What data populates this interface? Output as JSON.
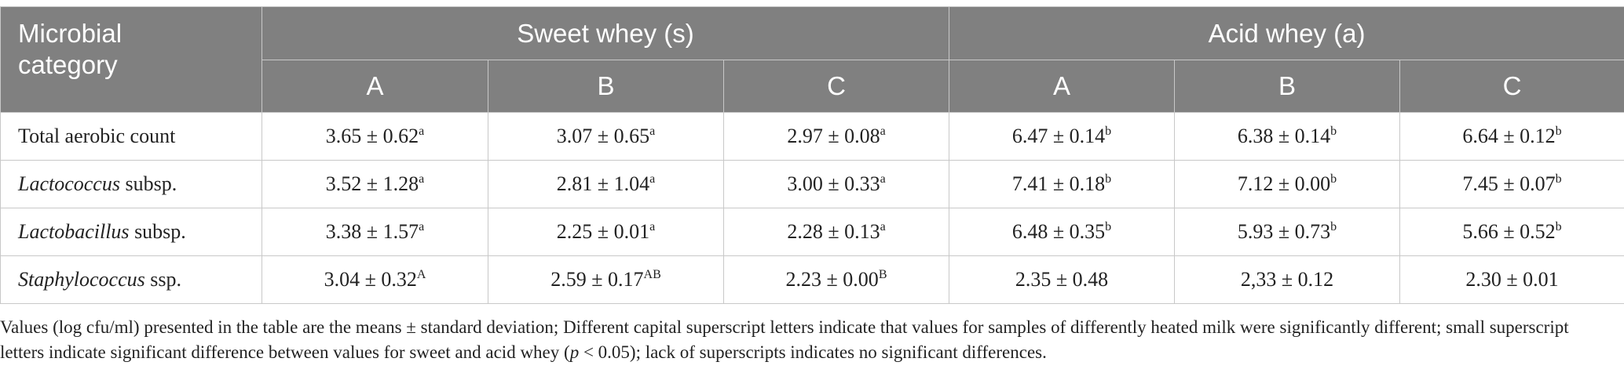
{
  "header": {
    "category_line1": "Microbial",
    "category_line2": "category",
    "groups": [
      "Sweet whey (s)",
      "Acid whey (a)"
    ],
    "subcolumns": [
      "A",
      "B",
      "C",
      "A",
      "B",
      "C"
    ]
  },
  "rows": [
    {
      "label_italic": "",
      "label_rest": "Total aerobic count",
      "cells": [
        {
          "v": "3.65 ± 0.62",
          "s": "a"
        },
        {
          "v": "3.07 ± 0.65",
          "s": "a"
        },
        {
          "v": "2.97 ± 0.08",
          "s": "a"
        },
        {
          "v": "6.47 ± 0.14",
          "s": "b"
        },
        {
          "v": "6.38 ± 0.14",
          "s": "b"
        },
        {
          "v": "6.64 ± 0.12",
          "s": "b"
        }
      ]
    },
    {
      "label_italic": "Lactococcus",
      "label_rest": " subsp.",
      "cells": [
        {
          "v": "3.52 ± 1.28",
          "s": "a"
        },
        {
          "v": "2.81 ± 1.04",
          "s": "a"
        },
        {
          "v": "3.00 ± 0.33",
          "s": "a"
        },
        {
          "v": "7.41 ± 0.18",
          "s": "b"
        },
        {
          "v": "7.12 ± 0.00",
          "s": "b"
        },
        {
          "v": "7.45 ± 0.07",
          "s": "b"
        }
      ]
    },
    {
      "label_italic": "Lactobacillus",
      "label_rest": " subsp.",
      "cells": [
        {
          "v": "3.38 ± 1.57",
          "s": "a"
        },
        {
          "v": "2.25 ± 0.01",
          "s": "a"
        },
        {
          "v": "2.28 ± 0.13",
          "s": "a"
        },
        {
          "v": "6.48 ± 0.35",
          "s": "b"
        },
        {
          "v": "5.93 ± 0.73",
          "s": "b"
        },
        {
          "v": "5.66 ± 0.52",
          "s": "b"
        }
      ]
    },
    {
      "label_italic": "Staphylococcus",
      "label_rest": " ssp.",
      "cells": [
        {
          "v": "3.04 ± 0.32",
          "s": "A"
        },
        {
          "v": "2.59 ± 0.17",
          "s": "AB"
        },
        {
          "v": "2.23 ± 0.00",
          "s": "B"
        },
        {
          "v": "2.35 ± 0.48",
          "s": ""
        },
        {
          "v": "2,33 ± 0.12",
          "s": ""
        },
        {
          "v": "2.30 ± 0.01",
          "s": ""
        }
      ]
    }
  ],
  "footnote": {
    "part1": "Values (log cfu/ml) presented in the table are the means ± standard deviation; Different capital superscript letters indicate that values for samples of differently heated milk were significantly different; small superscript letters indicate significant difference between values for sweet and acid whey (",
    "p_italic": "p",
    "part2": " < 0.05); lack of superscripts indicates no significant differences."
  }
}
